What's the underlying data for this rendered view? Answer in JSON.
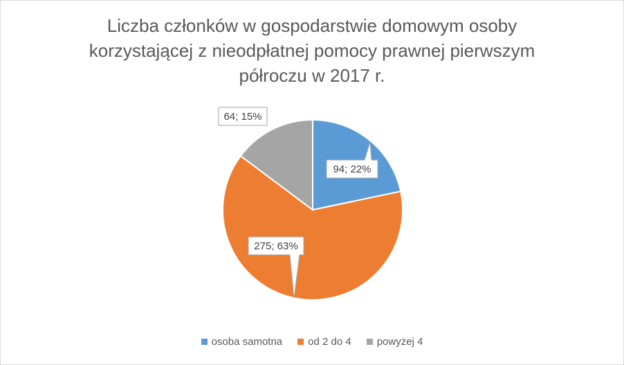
{
  "chart_data": {
    "type": "pie",
    "title_lines": [
      "Liczba członków w gospodarstwie domowym osoby",
      "korzystającej z nieodpłatnej pomocy prawnej pierwszym",
      "półroczu w 2017 r."
    ],
    "categories": [
      "osoba samotna",
      "od 2 do 4",
      "powyżej 4"
    ],
    "values": [
      94,
      275,
      64
    ],
    "percentages": [
      "22%",
      "63%",
      "15%"
    ],
    "data_labels": [
      "94; 22%",
      "275; 63%",
      "64; 15%"
    ],
    "colors": [
      "#5B9BD5",
      "#ED7D31",
      "#A5A5A5"
    ],
    "legend_position": "bottom"
  }
}
